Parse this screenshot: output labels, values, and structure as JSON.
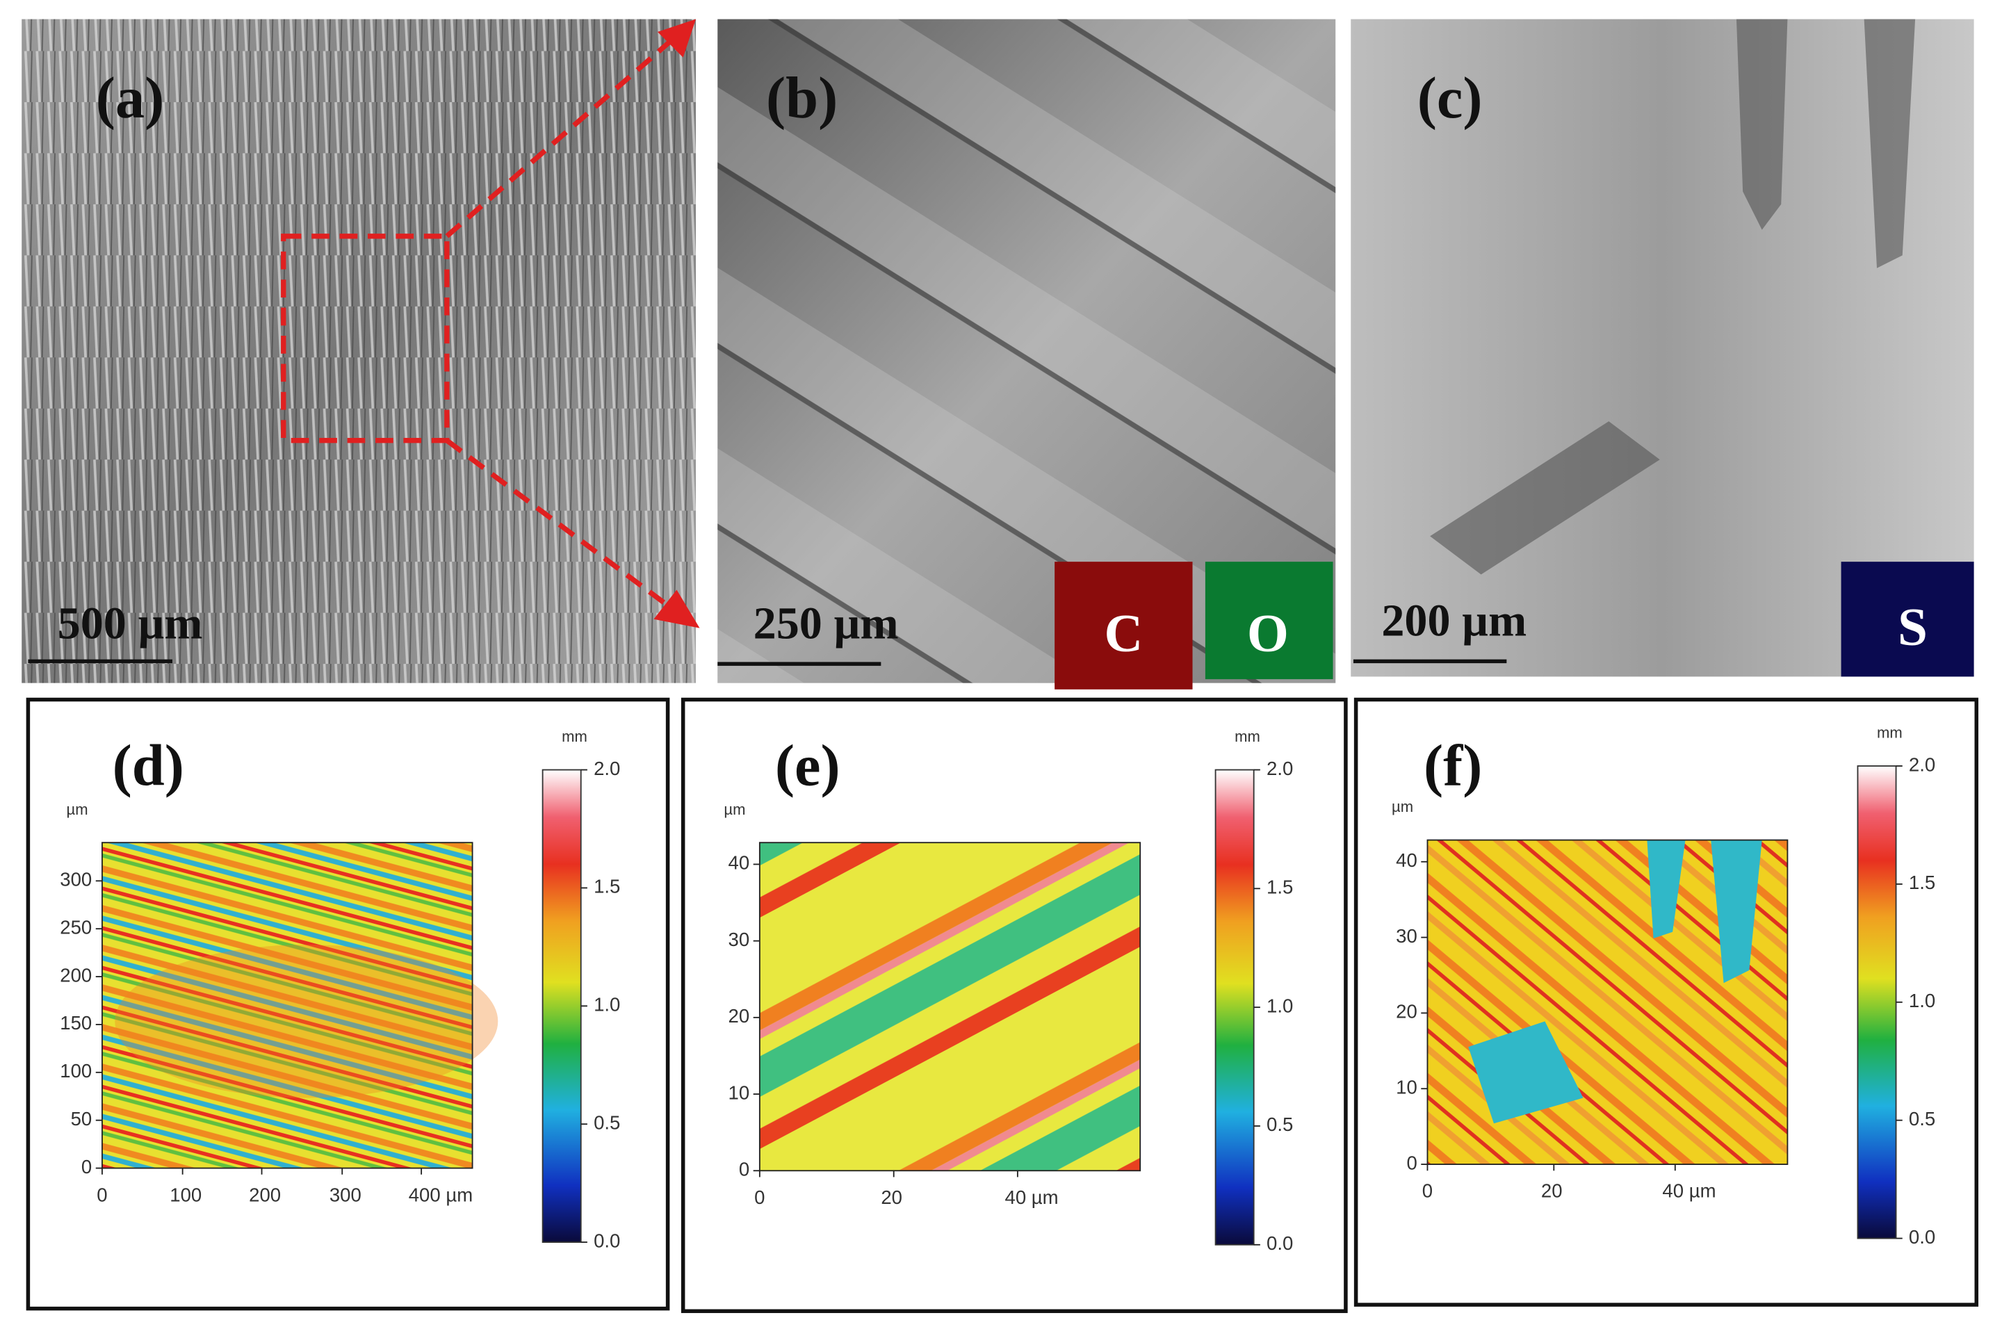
{
  "panels": [
    {
      "label": "(a)",
      "scale_bar": "500 µm"
    },
    {
      "label": "(b)",
      "scale_bar": "250 µm",
      "insets": [
        "C",
        "O"
      ]
    },
    {
      "label": "(c)",
      "scale_bar": "200 µm",
      "insets": [
        "S"
      ]
    },
    {
      "label": "(d)",
      "y_unit": "µm",
      "yticks": [
        "0",
        "50",
        "100",
        "150",
        "200",
        "250",
        "300"
      ],
      "xticks": [
        "0",
        "100",
        "200",
        "300",
        "400 µm"
      ],
      "colorbar_unit": "mm",
      "colorbar_ticks": [
        "0.0",
        "0.5",
        "1.0",
        "1.5",
        "2.0"
      ]
    },
    {
      "label": "(e)",
      "y_unit": "µm",
      "yticks": [
        "0",
        "10",
        "20",
        "30",
        "40"
      ],
      "xticks": [
        "0",
        "20",
        "40 µm"
      ],
      "colorbar_unit": "mm",
      "colorbar_ticks": [
        "0.0",
        "0.5",
        "1.0",
        "1.5",
        "2.0"
      ]
    },
    {
      "label": "(f)",
      "y_unit": "µm",
      "yticks": [
        "0",
        "10",
        "20",
        "30",
        "40"
      ],
      "xticks": [
        "0",
        "20",
        "40 µm"
      ],
      "colorbar_unit": "mm",
      "colorbar_ticks": [
        "0.0",
        "0.5",
        "1.0",
        "1.5",
        "2.0"
      ]
    }
  ]
}
